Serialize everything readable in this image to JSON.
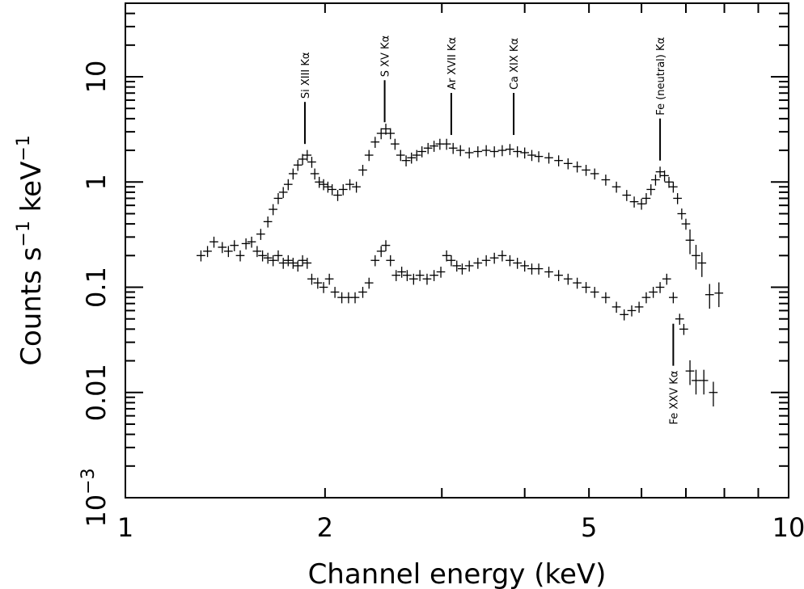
{
  "chart_data": {
    "type": "scatter",
    "title": "",
    "xlabel": "Channel energy (keV)",
    "ylabel_parts": [
      "Counts s",
      "−1",
      " keV",
      "−1"
    ],
    "x_scale": "log",
    "y_scale": "log",
    "xlim": [
      1,
      10
    ],
    "ylim": [
      0.001,
      50
    ],
    "x_ticks": [
      {
        "value": 1,
        "label": "1"
      },
      {
        "value": 2,
        "label": "2"
      },
      {
        "value": 5,
        "label": "5"
      },
      {
        "value": 10,
        "label": "10"
      }
    ],
    "y_ticks": [
      {
        "value": 0.001,
        "base": "10",
        "exp": "−3"
      },
      {
        "value": 0.01,
        "label": "0.01"
      },
      {
        "value": 0.1,
        "label": "0.1"
      },
      {
        "value": 1,
        "label": "1"
      },
      {
        "value": 10,
        "label": "10"
      }
    ],
    "grid": false,
    "series": [
      {
        "points": [
          [
            1.6,
            0.32
          ],
          [
            1.64,
            0.42
          ],
          [
            1.67,
            0.55
          ],
          [
            1.7,
            0.7
          ],
          [
            1.73,
            0.8
          ],
          [
            1.76,
            0.95
          ],
          [
            1.79,
            1.2
          ],
          [
            1.82,
            1.45
          ],
          [
            1.85,
            1.65
          ],
          [
            1.88,
            1.8
          ],
          [
            1.91,
            1.55
          ],
          [
            1.93,
            1.2
          ],
          [
            1.96,
            1.0
          ],
          [
            1.99,
            0.95
          ],
          [
            2.02,
            0.9
          ],
          [
            2.05,
            0.85
          ],
          [
            2.09,
            0.75
          ],
          [
            2.13,
            0.85
          ],
          [
            2.18,
            0.95
          ],
          [
            2.23,
            0.9
          ],
          [
            2.28,
            1.3
          ],
          [
            2.33,
            1.8
          ],
          [
            2.38,
            2.4
          ],
          [
            2.43,
            2.9
          ],
          [
            2.47,
            3.2
          ],
          [
            2.51,
            2.9
          ],
          [
            2.55,
            2.3
          ],
          [
            2.6,
            1.8
          ],
          [
            2.65,
            1.6
          ],
          [
            2.7,
            1.7
          ],
          [
            2.75,
            1.8
          ],
          [
            2.8,
            1.95
          ],
          [
            2.86,
            2.1
          ],
          [
            2.92,
            2.2
          ],
          [
            2.98,
            2.3
          ],
          [
            3.05,
            2.3
          ],
          [
            3.12,
            2.1
          ],
          [
            3.2,
            2.0
          ],
          [
            3.3,
            1.9
          ],
          [
            3.4,
            1.95
          ],
          [
            3.5,
            2.0
          ],
          [
            3.6,
            1.95
          ],
          [
            3.7,
            2.0
          ],
          [
            3.8,
            2.05
          ],
          [
            3.9,
            1.95
          ],
          [
            4.0,
            1.9
          ],
          [
            4.1,
            1.8
          ],
          [
            4.2,
            1.75
          ],
          [
            4.35,
            1.7
          ],
          [
            4.5,
            1.6
          ],
          [
            4.65,
            1.5
          ],
          [
            4.8,
            1.4
          ],
          [
            4.95,
            1.3
          ],
          [
            5.1,
            1.2
          ],
          [
            5.3,
            1.05
          ],
          [
            5.5,
            0.9
          ],
          [
            5.7,
            0.75
          ],
          [
            5.85,
            0.65
          ],
          [
            6.0,
            0.62
          ],
          [
            6.1,
            0.7
          ],
          [
            6.2,
            0.85
          ],
          [
            6.3,
            1.05
          ],
          [
            6.4,
            1.25
          ],
          [
            6.5,
            1.15
          ],
          [
            6.6,
            1.0
          ],
          [
            6.7,
            0.9
          ],
          [
            6.8,
            0.7
          ],
          [
            6.9,
            0.5
          ],
          [
            7.0,
            0.4
          ],
          [
            7.1,
            0.28
          ],
          [
            7.25,
            0.2
          ],
          [
            7.4,
            0.17
          ]
        ]
      },
      {
        "points": [
          [
            1.3,
            0.2
          ],
          [
            1.33,
            0.22
          ],
          [
            1.36,
            0.27
          ],
          [
            1.4,
            0.24
          ],
          [
            1.43,
            0.22
          ],
          [
            1.46,
            0.25
          ],
          [
            1.49,
            0.2
          ],
          [
            1.52,
            0.26
          ],
          [
            1.55,
            0.27
          ],
          [
            1.58,
            0.22
          ],
          [
            1.61,
            0.2
          ],
          [
            1.64,
            0.19
          ],
          [
            1.67,
            0.18
          ],
          [
            1.7,
            0.2
          ],
          [
            1.73,
            0.17
          ],
          [
            1.76,
            0.18
          ],
          [
            1.79,
            0.17
          ],
          [
            1.82,
            0.16
          ],
          [
            1.85,
            0.18
          ],
          [
            1.88,
            0.17
          ],
          [
            1.91,
            0.12
          ],
          [
            1.95,
            0.11
          ],
          [
            1.99,
            0.1
          ],
          [
            2.03,
            0.12
          ],
          [
            2.07,
            0.09
          ],
          [
            2.12,
            0.08
          ],
          [
            2.17,
            0.08
          ],
          [
            2.22,
            0.08
          ],
          [
            2.28,
            0.09
          ],
          [
            2.33,
            0.11
          ],
          [
            2.38,
            0.18
          ],
          [
            2.43,
            0.22
          ],
          [
            2.47,
            0.25
          ],
          [
            2.51,
            0.18
          ],
          [
            2.56,
            0.13
          ],
          [
            2.61,
            0.14
          ],
          [
            2.66,
            0.13
          ],
          [
            2.72,
            0.12
          ],
          [
            2.78,
            0.13
          ],
          [
            2.85,
            0.12
          ],
          [
            2.92,
            0.13
          ],
          [
            2.99,
            0.14
          ],
          [
            3.05,
            0.2
          ],
          [
            3.1,
            0.18
          ],
          [
            3.16,
            0.16
          ],
          [
            3.22,
            0.15
          ],
          [
            3.3,
            0.16
          ],
          [
            3.4,
            0.17
          ],
          [
            3.5,
            0.18
          ],
          [
            3.6,
            0.19
          ],
          [
            3.7,
            0.2
          ],
          [
            3.8,
            0.18
          ],
          [
            3.9,
            0.17
          ],
          [
            4.0,
            0.16
          ],
          [
            4.1,
            0.15
          ],
          [
            4.2,
            0.15
          ],
          [
            4.35,
            0.14
          ],
          [
            4.5,
            0.13
          ],
          [
            4.65,
            0.12
          ],
          [
            4.8,
            0.11
          ],
          [
            4.95,
            0.1
          ],
          [
            5.1,
            0.09
          ],
          [
            5.3,
            0.08
          ],
          [
            5.5,
            0.065
          ],
          [
            5.65,
            0.055
          ],
          [
            5.8,
            0.06
          ],
          [
            5.95,
            0.065
          ],
          [
            6.1,
            0.08
          ],
          [
            6.25,
            0.09
          ],
          [
            6.4,
            0.1
          ],
          [
            6.55,
            0.12
          ],
          [
            6.7,
            0.08
          ],
          [
            6.85,
            0.05
          ],
          [
            6.95,
            0.04
          ],
          [
            7.1,
            0.016
          ],
          [
            7.25,
            0.013
          ],
          [
            7.45,
            0.013
          ],
          [
            7.7,
            0.01
          ]
        ]
      },
      {
        "points": [
          [
            7.6,
            0.085
          ],
          [
            7.85,
            0.088
          ]
        ]
      }
    ],
    "annotations": [
      {
        "label": "Si XIII Kα",
        "x": 1.865,
        "y_tip": 2.3
      },
      {
        "label": "S XV Kα",
        "x": 2.46,
        "y_tip": 3.7
      },
      {
        "label": "Ar XVII Kα",
        "x": 3.1,
        "y_tip": 2.8
      },
      {
        "label": "Ca XIX Kα",
        "x": 3.85,
        "y_tip": 2.8
      },
      {
        "label": "Fe (neutral) Kα",
        "x": 6.4,
        "y_tip": 1.6
      },
      {
        "label": "Fe XXV Kα",
        "x": 6.7,
        "y_tip": 0.045,
        "below": true
      }
    ]
  }
}
